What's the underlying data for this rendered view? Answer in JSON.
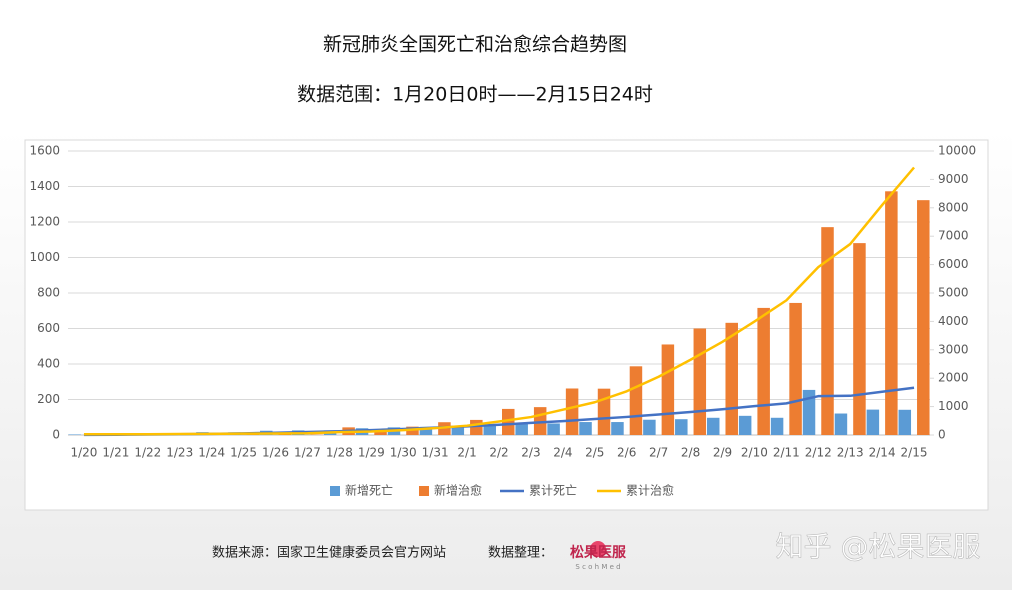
{
  "chart_data": {
    "type": "bar-line",
    "title": "新冠肺炎全国死亡和治愈综合趋势图",
    "subtitle": "数据范围：1月20日0时——2月15日24时",
    "categories": [
      "1/20",
      "1/21",
      "1/22",
      "1/23",
      "1/24",
      "1/25",
      "1/26",
      "1/27",
      "1/28",
      "1/29",
      "1/30",
      "1/31",
      "2/1",
      "2/2",
      "2/3",
      "2/4",
      "2/5",
      "2/6",
      "2/7",
      "2/8",
      "2/9",
      "2/10",
      "2/11",
      "2/12",
      "2/13",
      "2/14",
      "2/15"
    ],
    "series": [
      {
        "name": "新增死亡",
        "kind": "bar",
        "axis": "y",
        "color": "#5b9bd5",
        "values": [
          3,
          3,
          8,
          8,
          16,
          15,
          24,
          26,
          26,
          38,
          43,
          46,
          45,
          57,
          64,
          65,
          73,
          73,
          86,
          89,
          97,
          108,
          97,
          254,
          121,
          143,
          142
        ]
      },
      {
        "name": "新增治愈",
        "kind": "bar",
        "axis": "y",
        "color": "#ed7d31",
        "values": [
          0,
          0,
          6,
          6,
          4,
          11,
          9,
          2,
          43,
          21,
          47,
          72,
          85,
          147,
          157,
          262,
          261,
          387,
          510,
          600,
          632,
          716,
          744,
          1171,
          1081,
          1373,
          1323
        ]
      },
      {
        "name": "累计死亡",
        "kind": "line",
        "axis": "y2",
        "color": "#4472c4",
        "values": [
          6,
          9,
          17,
          25,
          41,
          56,
          80,
          106,
          132,
          170,
          213,
          259,
          304,
          361,
          425,
          490,
          563,
          636,
          722,
          811,
          908,
          1016,
          1113,
          1367,
          1380,
          1523,
          1665
        ]
      },
      {
        "name": "累计治愈",
        "kind": "line",
        "axis": "y2",
        "color": "#ffc000",
        "values": [
          25,
          25,
          28,
          34,
          38,
          49,
          51,
          60,
          103,
          124,
          171,
          243,
          328,
          475,
          632,
          892,
          1153,
          1540,
          2050,
          2649,
          3281,
          3996,
          4740,
          5911,
          6723,
          8096,
          9419
        ]
      }
    ],
    "ylim": [
      0,
      1600
    ],
    "yticks": [
      0,
      200,
      400,
      600,
      800,
      1000,
      1200,
      1400,
      1600
    ],
    "y2lim": [
      0,
      10000
    ],
    "y2ticks": [
      0,
      1000,
      2000,
      3000,
      4000,
      5000,
      6000,
      7000,
      8000,
      9000,
      10000
    ],
    "grid": true,
    "legend": "bottom"
  },
  "footer": {
    "source": "数据来源：国家卫生健康委员会官方网站",
    "organizer": "数据整理：",
    "logo": "松果医服",
    "logo_sub": "S c o h M e d",
    "watermark": "知乎 @松果医服"
  }
}
